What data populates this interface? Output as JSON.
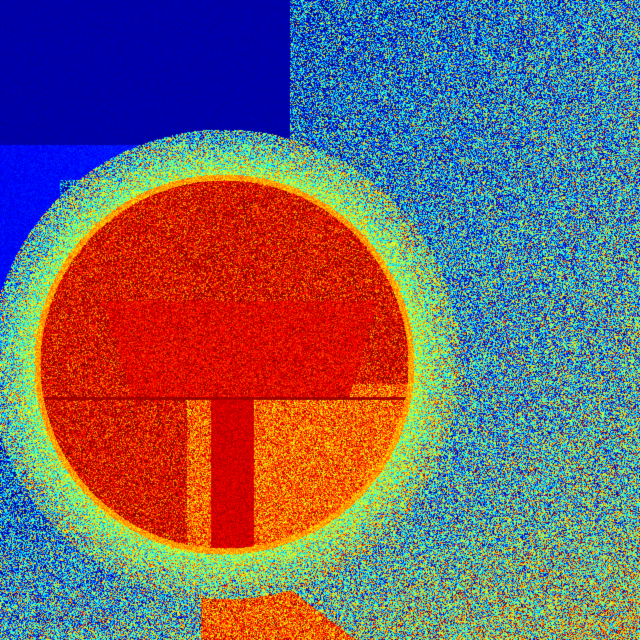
{
  "image": {
    "kind": "false-color-heatmap",
    "colormap": "jet",
    "palette": {
      "deep_blue": "#00008F",
      "blue": "#0000FF",
      "cyan": "#00FFFF",
      "yellow": "#FFFF00",
      "red": "#FF0000",
      "dark_red": "#800000"
    },
    "subject": "sphere",
    "text": []
  }
}
